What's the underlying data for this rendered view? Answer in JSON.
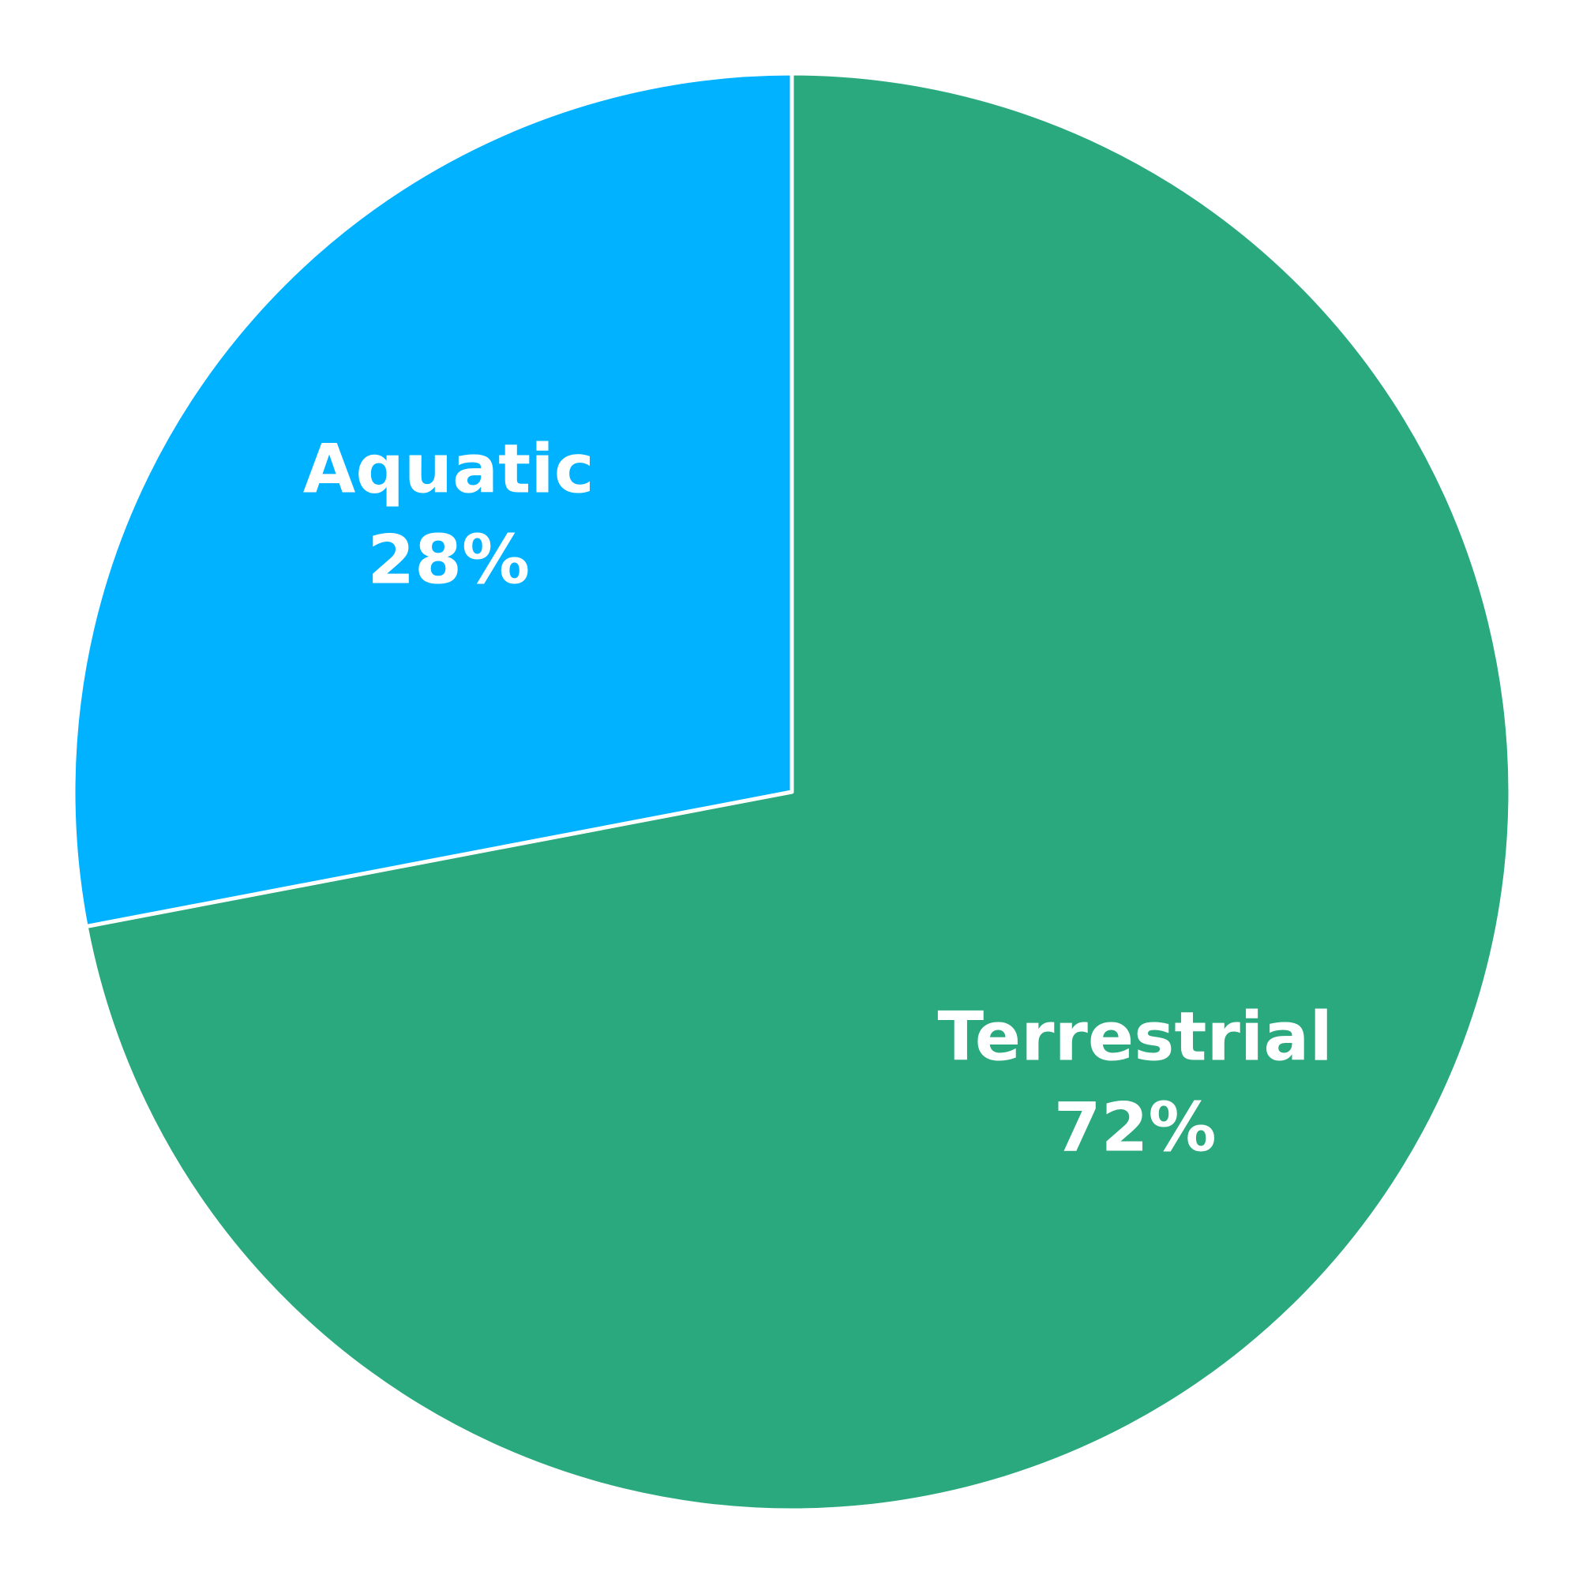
{
  "chart_data": {
    "type": "pie",
    "start_angle_deg": 0,
    "direction": "clockwise",
    "slices": [
      {
        "label": "Terrestrial",
        "value": 72,
        "value_label": "72%",
        "color": "#2aa97e"
      },
      {
        "label": "Aquatic",
        "value": 28,
        "value_label": "28%",
        "color": "#00b2ff"
      }
    ]
  }
}
